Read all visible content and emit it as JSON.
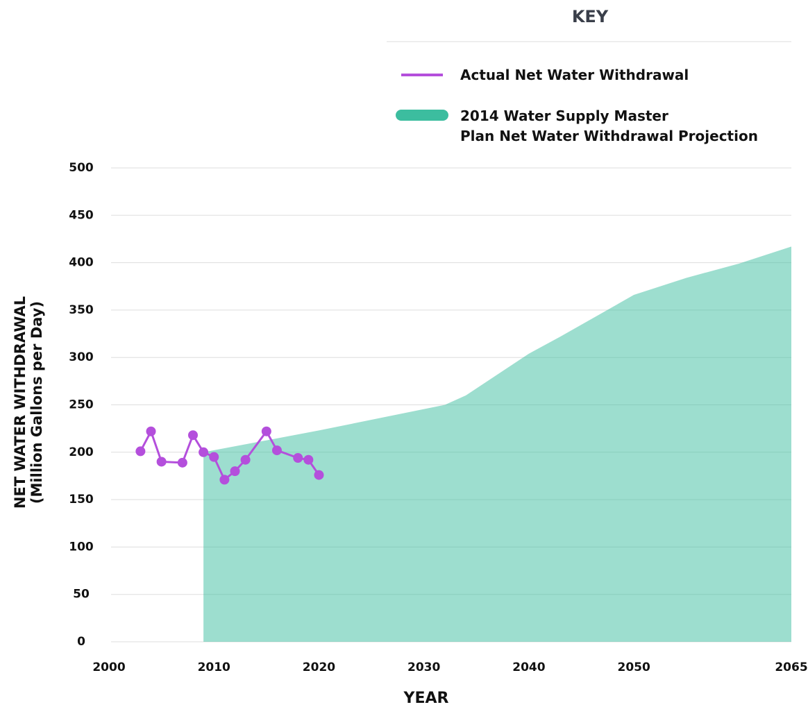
{
  "chart_data": {
    "type": "line",
    "legend_title": "KEY",
    "y_label": "NET WATER WITHDRAWAL",
    "y_sublabel": "(Million Gallons per Day)",
    "x_label": "YEAR",
    "xlim": [
      2000,
      2065
    ],
    "xticks": [
      2000,
      2010,
      2020,
      2030,
      2040,
      2050,
      2065
    ],
    "ylim": [
      0,
      500
    ],
    "yticks": [
      0,
      50,
      100,
      150,
      200,
      250,
      300,
      350,
      400,
      450,
      500
    ],
    "grid": true,
    "series": [
      {
        "name": "Actual Net Water Withdrawal",
        "color": "#b44fdc",
        "markers": true,
        "x": [
          2003,
          2004,
          2005,
          2007,
          2008,
          2009,
          2010,
          2011,
          2012,
          2013,
          2015,
          2016,
          2018,
          2019,
          2020
        ],
        "values": [
          201,
          222,
          190,
          189,
          218,
          200,
          195,
          171,
          180,
          192,
          222,
          202,
          194,
          192,
          176
        ]
      },
      {
        "name": "2014 Water Supply Master\nPlan Net Water Withdrawal Projection",
        "color": "#3cbd9f",
        "area": true,
        "x": [
          2009,
          2020,
          2032,
          2034,
          2040,
          2043,
          2050,
          2055,
          2060,
          2065
        ],
        "values": [
          200,
          223,
          250,
          260,
          304,
          322,
          366,
          384,
          399,
          417
        ]
      }
    ]
  }
}
